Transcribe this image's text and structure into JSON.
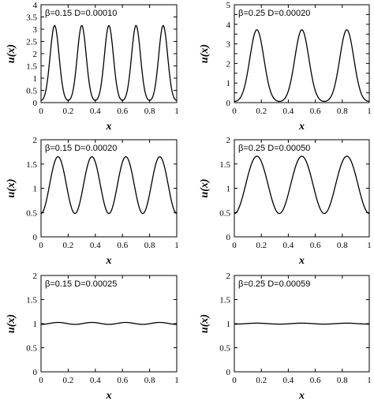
{
  "chart_data": [
    {
      "type": "line",
      "panel": "top-left",
      "annotation": "β=0.15 D=0.00010",
      "xlabel": "x",
      "ylabel": "u(x)",
      "xlim": [
        0,
        1
      ],
      "ylim": [
        0,
        4
      ],
      "xticks": [
        0,
        0.2,
        0.4,
        0.6,
        0.8,
        1
      ],
      "yticks": [
        0,
        0.5,
        1,
        1.5,
        2,
        2.5,
        3,
        3.5,
        4
      ],
      "x_tick_labels": [
        "0",
        "0.2",
        "0.4",
        "0.6",
        "0.8",
        "1"
      ],
      "y_tick_labels": [
        "0",
        "0.5",
        "1",
        "1.5",
        "2",
        "2.5",
        "3",
        "3.5",
        "4"
      ],
      "peak_positions": [
        0.1,
        0.3,
        0.5,
        0.7,
        0.9
      ],
      "peak_value": 3.15,
      "trough_value": 0.03,
      "peak_width": 0.033
    },
    {
      "type": "line",
      "panel": "top-right",
      "annotation": "β=0.25 D=0.00020",
      "xlabel": "x",
      "ylabel": "u(x)",
      "xlim": [
        0,
        1
      ],
      "ylim": [
        0,
        5
      ],
      "xticks": [
        0,
        0.2,
        0.4,
        0.6,
        0.8,
        1
      ],
      "yticks": [
        0,
        0.5,
        1,
        1.5,
        2,
        2.5,
        3,
        3.5,
        4,
        4.5,
        5
      ],
      "x_tick_labels": [
        "0",
        "0.2",
        "0.4",
        "0.6",
        "0.8",
        "1"
      ],
      "y_tick_labels": [
        "0",
        "1",
        "2",
        "3",
        "4",
        "5"
      ],
      "peak_positions": [
        0.167,
        0.5,
        0.833
      ],
      "peak_value": 3.72,
      "trough_value": 0.02,
      "peak_width": 0.052
    },
    {
      "type": "line",
      "panel": "middle-left",
      "annotation": "β=0.15 D=0.00020",
      "xlabel": "x",
      "ylabel": "u(x)",
      "xlim": [
        0,
        1
      ],
      "ylim": [
        0,
        2
      ],
      "xticks": [
        0,
        0.2,
        0.4,
        0.6,
        0.8,
        1
      ],
      "yticks": [
        0,
        0.5,
        1,
        1.5,
        2
      ],
      "x_tick_labels": [
        "0",
        "0.2",
        "0.4",
        "0.6",
        "0.8",
        "1"
      ],
      "y_tick_labels": [
        "0",
        "0.5",
        "1",
        "1.5",
        "2"
      ],
      "peak_positions": [
        0.125,
        0.375,
        0.625,
        0.875
      ],
      "peak_value": 1.65,
      "trough_value": 0.48,
      "peak_width": 0.0
    },
    {
      "type": "line",
      "panel": "middle-right",
      "annotation": "β=0.25 D=0.00050",
      "xlabel": "x",
      "ylabel": "u(x)",
      "xlim": [
        0,
        1
      ],
      "ylim": [
        0,
        2
      ],
      "xticks": [
        0,
        0.2,
        0.4,
        0.6,
        0.8,
        1
      ],
      "yticks": [
        0,
        0.5,
        1,
        1.5,
        2
      ],
      "x_tick_labels": [
        "0",
        "0.2",
        "0.4",
        "0.6",
        "0.8",
        "1"
      ],
      "y_tick_labels": [
        "0",
        "0.5",
        "1",
        "1.5",
        "2"
      ],
      "peak_positions": [
        0.167,
        0.5,
        0.833
      ],
      "peak_value": 1.66,
      "trough_value": 0.48,
      "peak_width": 0.0
    },
    {
      "type": "line",
      "panel": "bottom-left",
      "annotation": "β=0.15 D=0.00025",
      "xlabel": "x",
      "ylabel": "u(x)",
      "xlim": [
        0,
        1
      ],
      "ylim": [
        0,
        2
      ],
      "xticks": [
        0,
        0.2,
        0.4,
        0.6,
        0.8,
        1
      ],
      "yticks": [
        0,
        0.5,
        1,
        1.5,
        2
      ],
      "x_tick_labels": [
        "0",
        "0.2",
        "0.4",
        "0.6",
        "0.8",
        "1"
      ],
      "y_tick_labels": [
        "0",
        "0.5",
        "1",
        "1.5",
        "2"
      ],
      "peak_positions": [
        0.125,
        0.375,
        0.625,
        0.875
      ],
      "peak_value": 1.025,
      "trough_value": 0.985,
      "peak_width": 0.0
    },
    {
      "type": "line",
      "panel": "bottom-right",
      "annotation": "β=0.25 D=0.00059",
      "xlabel": "x",
      "ylabel": "u(x)",
      "xlim": [
        0,
        1
      ],
      "ylim": [
        0,
        2
      ],
      "xticks": [
        0,
        0.2,
        0.4,
        0.6,
        0.8,
        1
      ],
      "yticks": [
        0,
        0.5,
        1,
        1.5,
        2
      ],
      "x_tick_labels": [
        "0",
        "0.2",
        "0.4",
        "0.6",
        "0.8",
        "1"
      ],
      "y_tick_labels": [
        "0",
        "0.5",
        "1",
        "1.5",
        "2"
      ],
      "peak_positions": [
        0.167,
        0.5,
        0.833
      ],
      "peak_value": 1.01,
      "trough_value": 0.99,
      "peak_width": 0.0
    }
  ]
}
